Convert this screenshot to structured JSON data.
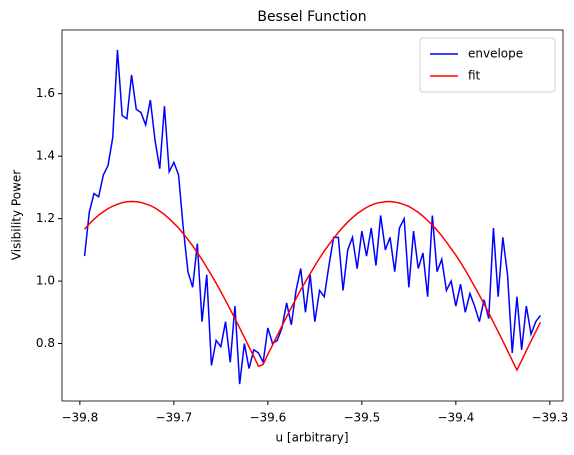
{
  "chart_data": {
    "type": "line",
    "title": "Bessel Function",
    "xlabel": "u [arbitrary]",
    "ylabel": "Visibility Power",
    "x": [
      -39.795,
      -39.79,
      -39.785,
      -39.78,
      -39.775,
      -39.77,
      -39.765,
      -39.76,
      -39.755,
      -39.75,
      -39.745,
      -39.74,
      -39.735,
      -39.73,
      -39.725,
      -39.72,
      -39.715,
      -39.71,
      -39.705,
      -39.7,
      -39.695,
      -39.69,
      -39.685,
      -39.68,
      -39.675,
      -39.67,
      -39.665,
      -39.66,
      -39.655,
      -39.65,
      -39.645,
      -39.64,
      -39.635,
      -39.63,
      -39.625,
      -39.62,
      -39.615,
      -39.61,
      -39.605,
      -39.6,
      -39.595,
      -39.59,
      -39.585,
      -39.58,
      -39.575,
      -39.57,
      -39.565,
      -39.56,
      -39.555,
      -39.55,
      -39.545,
      -39.54,
      -39.535,
      -39.53,
      -39.525,
      -39.52,
      -39.515,
      -39.51,
      -39.505,
      -39.5,
      -39.495,
      -39.49,
      -39.485,
      -39.48,
      -39.475,
      -39.47,
      -39.465,
      -39.46,
      -39.455,
      -39.45,
      -39.445,
      -39.44,
      -39.435,
      -39.43,
      -39.425,
      -39.42,
      -39.415,
      -39.41,
      -39.405,
      -39.4,
      -39.395,
      -39.39,
      -39.385,
      -39.38,
      -39.375,
      -39.37,
      -39.365,
      -39.36,
      -39.355,
      -39.35,
      -39.345,
      -39.34,
      -39.335,
      -39.33,
      -39.325,
      -39.32,
      -39.315,
      -39.31
    ],
    "series": [
      {
        "name": "envelope",
        "color": "#0000ff",
        "values": [
          1.08,
          1.22,
          1.28,
          1.27,
          1.34,
          1.37,
          1.46,
          1.74,
          1.53,
          1.52,
          1.66,
          1.55,
          1.54,
          1.5,
          1.58,
          1.45,
          1.36,
          1.56,
          1.35,
          1.38,
          1.34,
          1.17,
          1.03,
          0.98,
          1.12,
          0.87,
          1.02,
          0.73,
          0.81,
          0.79,
          0.87,
          0.74,
          0.92,
          0.67,
          0.8,
          0.72,
          0.78,
          0.77,
          0.74,
          0.85,
          0.8,
          0.81,
          0.85,
          0.93,
          0.86,
          0.97,
          1.04,
          0.9,
          1.02,
          0.87,
          0.97,
          0.95,
          1.05,
          1.14,
          1.14,
          0.97,
          1.1,
          1.14,
          1.04,
          1.16,
          1.08,
          1.17,
          1.05,
          1.21,
          1.1,
          1.14,
          1.03,
          1.17,
          1.2,
          0.98,
          1.16,
          1.04,
          1.09,
          0.95,
          1.21,
          1.03,
          1.07,
          0.97,
          1.0,
          0.92,
          0.99,
          0.9,
          0.96,
          0.92,
          0.87,
          0.94,
          0.88,
          1.17,
          0.95,
          1.14,
          1.02,
          0.77,
          0.95,
          0.78,
          0.92,
          0.83,
          0.87,
          0.89
        ]
      },
      {
        "name": "fit",
        "color": "#ff0000",
        "values": [
          1.166,
          1.183,
          1.198,
          1.211,
          1.222,
          1.232,
          1.24,
          1.246,
          1.251,
          1.254,
          1.255,
          1.254,
          1.252,
          1.247,
          1.242,
          1.234,
          1.224,
          1.213,
          1.2,
          1.185,
          1.17,
          1.152,
          1.133,
          1.113,
          1.091,
          1.069,
          1.044,
          1.019,
          0.993,
          0.966,
          0.938,
          0.909,
          0.88,
          0.85,
          0.82,
          0.789,
          0.759,
          0.727,
          0.733,
          0.765,
          0.795,
          0.826,
          0.856,
          0.886,
          0.915,
          0.944,
          0.972,
          0.998,
          1.024,
          1.049,
          1.073,
          1.096,
          1.117,
          1.137,
          1.156,
          1.173,
          1.189,
          1.203,
          1.216,
          1.226,
          1.236,
          1.243,
          1.249,
          1.252,
          1.254,
          1.255,
          1.253,
          1.25,
          1.245,
          1.239,
          1.23,
          1.22,
          1.208,
          1.194,
          1.179,
          1.163,
          1.145,
          1.125,
          1.104,
          1.083,
          1.06,
          1.035,
          1.009,
          0.982,
          0.955,
          0.927,
          0.898,
          0.868,
          0.838,
          0.808,
          0.777,
          0.746,
          0.715,
          0.746,
          0.777,
          0.808,
          0.838,
          0.868
        ]
      }
    ],
    "xlim": [
      -39.819,
      -39.286
    ],
    "ylim": [
      0.616,
      1.804
    ],
    "xticks": [
      {
        "value": -39.8,
        "label": "−39.8"
      },
      {
        "value": -39.7,
        "label": "−39.7"
      },
      {
        "value": -39.6,
        "label": "−39.6"
      },
      {
        "value": -39.5,
        "label": "−39.5"
      },
      {
        "value": -39.4,
        "label": "−39.4"
      },
      {
        "value": -39.3,
        "label": "−39.3"
      }
    ],
    "yticks": [
      0.8,
      {
        "value": 1,
        "label": "1.0"
      },
      1.2,
      1.4,
      1.6
    ],
    "legend": "upper right",
    "grid": false
  }
}
